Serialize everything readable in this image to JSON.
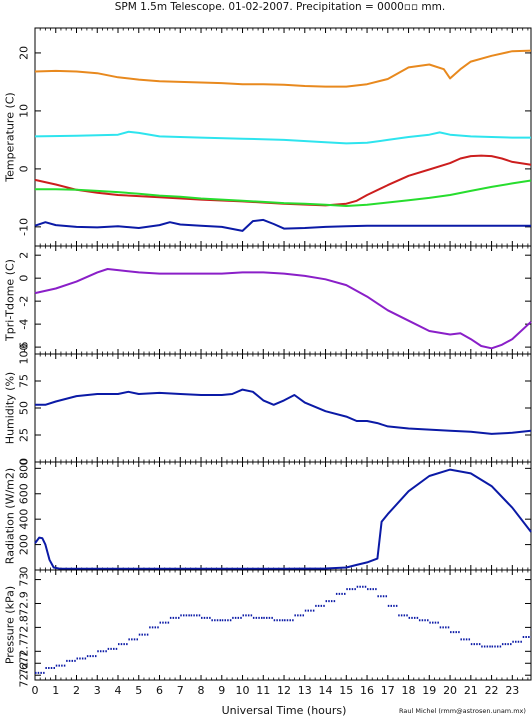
{
  "title": "SPM 1.5m Telescope. 01-02-2007. Precipitation = 0000▫▫ mm.",
  "xlabel": "Universal Time (hours)",
  "credit": "Raul Michel  (rmm@astrosen.unam.mx)",
  "chart_data": [
    {
      "type": "line",
      "id": "temperature",
      "ylabel": "Temperature (C)",
      "xlim": [
        0,
        23.9
      ],
      "ylim": [
        -13.3,
        24.3
      ],
      "yticks": [
        -10,
        0,
        10,
        20
      ],
      "series": [
        {
          "color": "#e8891e",
          "x": [
            0,
            1,
            2,
            3,
            4,
            5,
            6,
            7,
            8,
            9,
            10,
            11,
            12,
            13,
            14,
            15,
            16,
            17,
            18,
            19,
            19.7,
            20,
            20.5,
            21,
            22,
            23,
            23.9
          ],
          "y": [
            16.8,
            16.9,
            16.8,
            16.5,
            15.8,
            15.4,
            15.1,
            15.0,
            14.9,
            14.8,
            14.6,
            14.6,
            14.5,
            14.3,
            14.2,
            14.2,
            14.6,
            15.5,
            17.5,
            18.0,
            17.2,
            15.6,
            17.2,
            18.5,
            19.5,
            20.3,
            20.4
          ]
        },
        {
          "color": "#2ee4ee",
          "x": [
            0,
            2,
            4,
            4.5,
            5,
            6,
            8,
            10,
            12,
            14,
            15,
            16,
            17,
            18,
            19,
            19.5,
            20,
            21,
            22,
            23,
            23.9
          ],
          "y": [
            5.6,
            5.7,
            5.9,
            6.4,
            6.2,
            5.6,
            5.4,
            5.2,
            5.0,
            4.6,
            4.4,
            4.5,
            5.0,
            5.5,
            5.9,
            6.3,
            5.9,
            5.6,
            5.5,
            5.4,
            5.4
          ]
        },
        {
          "color": "#cc1e1e",
          "x": [
            0,
            1,
            2,
            3,
            4,
            6,
            8,
            10,
            12,
            14,
            15,
            15.5,
            16,
            17,
            18,
            19,
            20,
            20.5,
            21,
            21.5,
            22,
            22.5,
            23,
            23.9
          ],
          "y": [
            -1.9,
            -2.7,
            -3.6,
            -4.1,
            -4.5,
            -4.9,
            -5.3,
            -5.6,
            -6.0,
            -6.3,
            -6.0,
            -5.5,
            -4.5,
            -2.8,
            -1.2,
            -0.1,
            1.0,
            1.8,
            2.2,
            2.3,
            2.2,
            1.8,
            1.2,
            0.7
          ]
        },
        {
          "color": "#27dd2e",
          "x": [
            0,
            1,
            2,
            3,
            4,
            5,
            6,
            7,
            8,
            9,
            10,
            11,
            12,
            13,
            14,
            15,
            16,
            17,
            18,
            19,
            20,
            21,
            22,
            23,
            23.9
          ],
          "y": [
            -3.5,
            -3.5,
            -3.6,
            -3.8,
            -4.0,
            -4.3,
            -4.6,
            -4.8,
            -5.1,
            -5.3,
            -5.5,
            -5.7,
            -5.9,
            -6.0,
            -6.2,
            -6.4,
            -6.2,
            -5.8,
            -5.4,
            -5.0,
            -4.5,
            -3.8,
            -3.1,
            -2.5,
            -2.0
          ]
        },
        {
          "color": "#0b1aa6",
          "x": [
            0,
            0.5,
            1,
            2,
            3,
            4,
            5,
            6,
            6.5,
            7,
            8,
            9,
            10,
            10.5,
            11,
            11.5,
            12,
            13,
            14,
            15,
            16,
            17,
            18,
            19,
            20,
            21,
            22,
            23,
            23.9
          ],
          "y": [
            -9.8,
            -9.2,
            -9.7,
            -10.0,
            -10.1,
            -9.9,
            -10.2,
            -9.7,
            -9.2,
            -9.6,
            -9.8,
            -10.0,
            -10.7,
            -9.0,
            -8.8,
            -9.5,
            -10.3,
            -10.2,
            -10.0,
            -9.9,
            -9.8,
            -9.8,
            -9.8,
            -9.8,
            -9.8,
            -9.8,
            -9.8,
            -9.8,
            -9.8
          ]
        }
      ]
    },
    {
      "type": "line",
      "id": "tpri",
      "ylabel": "Tpri-Tdome (C)",
      "xlim": [
        0,
        23.9
      ],
      "ylim": [
        -6.6,
        2.8
      ],
      "yticks": [
        -6,
        -4,
        -2,
        0,
        2
      ],
      "series": [
        {
          "color": "#8a1fc8",
          "x": [
            0,
            1,
            2,
            3,
            3.5,
            4,
            5,
            6,
            7,
            8,
            9,
            10,
            11,
            12,
            13,
            14,
            15,
            16,
            16.5,
            17,
            18,
            19,
            20,
            20.5,
            21,
            21.5,
            22,
            22.5,
            23,
            23.9
          ],
          "y": [
            -1.3,
            -0.9,
            -0.3,
            0.5,
            0.8,
            0.7,
            0.5,
            0.4,
            0.4,
            0.4,
            0.4,
            0.5,
            0.5,
            0.4,
            0.2,
            -0.1,
            -0.6,
            -1.6,
            -2.2,
            -2.8,
            -3.7,
            -4.6,
            -4.9,
            -4.8,
            -5.3,
            -5.9,
            -6.1,
            -5.8,
            -5.3,
            -3.8
          ]
        }
      ]
    },
    {
      "type": "line",
      "id": "humidity",
      "ylabel": "Humidity (%)",
      "xlim": [
        0,
        23.9
      ],
      "ylim": [
        0,
        100
      ],
      "yticks": [
        0,
        25,
        50,
        75,
        100
      ],
      "series": [
        {
          "color": "#0b1aa6",
          "x": [
            0,
            0.5,
            1,
            2,
            3,
            4,
            4.5,
            5,
            6,
            7,
            8,
            9,
            9.5,
            10,
            10.5,
            11,
            11.5,
            12,
            12.5,
            13,
            14,
            15,
            15.5,
            16,
            16.5,
            17,
            18,
            19,
            20,
            21,
            22,
            23,
            23.9
          ],
          "y": [
            53,
            53,
            56,
            61,
            63,
            63,
            65,
            63,
            64,
            63,
            62,
            62,
            63,
            67,
            65,
            57,
            53,
            57,
            62,
            55,
            47,
            42,
            38,
            38,
            36,
            33,
            31,
            30,
            29,
            28,
            26,
            27,
            29
          ]
        }
      ]
    },
    {
      "type": "line",
      "id": "radiation",
      "ylabel": "Radiation (W/m2)",
      "xlim": [
        0,
        23.9
      ],
      "ylim": [
        0,
        850
      ],
      "yticks": [
        0,
        200,
        400,
        600,
        800
      ],
      "series": [
        {
          "color": "#0b1aa6",
          "x": [
            0,
            0.2,
            0.35,
            0.5,
            0.7,
            0.9,
            1.2,
            2,
            4,
            6,
            8,
            10,
            12,
            14,
            15,
            15.5,
            16,
            16.5,
            16.7,
            17,
            18,
            19,
            20,
            21,
            22,
            23,
            23.9
          ],
          "y": [
            210,
            255,
            250,
            200,
            80,
            20,
            10,
            10,
            10,
            10,
            10,
            10,
            10,
            12,
            20,
            40,
            60,
            90,
            380,
            440,
            620,
            740,
            790,
            760,
            660,
            490,
            300
          ]
        }
      ]
    },
    {
      "type": "scatter",
      "id": "pressure",
      "ylabel": "Pressure (kPa)",
      "xlim": [
        0,
        23.9
      ],
      "ylim": [
        72.58,
        73.04
      ],
      "yticks": [
        72.6,
        72.7,
        72.8,
        72.9,
        73.0
      ],
      "ytick_labels": [
        "72.6",
        "72.7",
        "72.7",
        "72.8",
        "72.9",
        "73"
      ],
      "ytick_values": [
        72.6,
        72.65,
        72.7,
        72.8,
        72.9,
        73.0
      ],
      "series": [
        {
          "color": "#0b1aa6",
          "x": [
            0,
            0.5,
            1,
            1.5,
            2,
            2.5,
            3,
            3.5,
            4,
            4.5,
            5,
            5.5,
            6,
            6.5,
            7,
            7.5,
            8,
            8.5,
            9,
            9.5,
            10,
            10.5,
            11,
            11.5,
            12,
            12.5,
            13,
            13.5,
            14,
            14.5,
            15,
            15.5,
            16,
            16.5,
            17,
            17.5,
            18,
            18.5,
            19,
            19.5,
            20,
            20.5,
            21,
            21.5,
            22,
            22.5,
            23,
            23.5,
            23.9
          ],
          "y": [
            72.61,
            72.63,
            72.64,
            72.66,
            72.67,
            72.68,
            72.7,
            72.71,
            72.73,
            72.75,
            72.77,
            72.8,
            72.82,
            72.84,
            72.85,
            72.85,
            72.84,
            72.83,
            72.83,
            72.84,
            72.85,
            72.84,
            72.84,
            72.83,
            72.83,
            72.85,
            72.87,
            72.89,
            72.91,
            72.94,
            72.96,
            72.97,
            72.96,
            72.93,
            72.89,
            72.85,
            72.84,
            72.83,
            72.82,
            72.8,
            72.78,
            72.75,
            72.73,
            72.72,
            72.72,
            72.73,
            72.74,
            72.76,
            72.79
          ]
        }
      ]
    }
  ],
  "xticks": [
    0,
    1,
    2,
    3,
    4,
    5,
    6,
    7,
    8,
    9,
    10,
    11,
    12,
    13,
    14,
    15,
    16,
    17,
    18,
    19,
    20,
    21,
    22,
    23
  ]
}
